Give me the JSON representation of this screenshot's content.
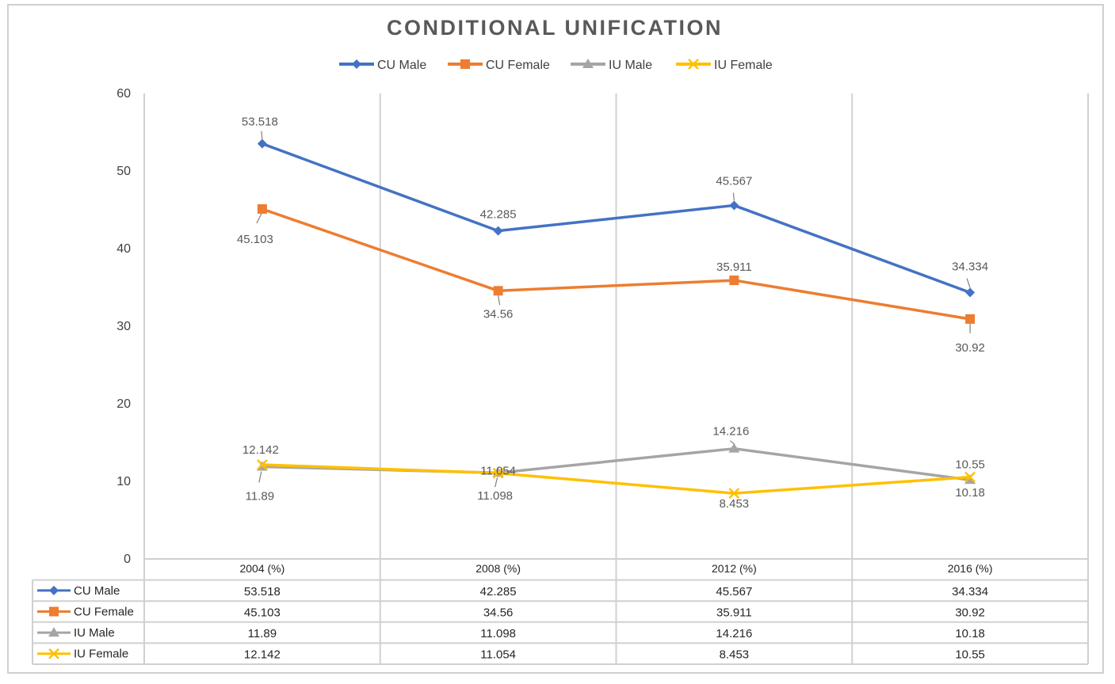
{
  "chart_data": {
    "type": "line",
    "title": "CONDITIONAL UNIFICATION",
    "categories": [
      "2004 (%)",
      "2008 (%)",
      "2012 (%)",
      "2016 (%)"
    ],
    "y_ticks": [
      "0",
      "10",
      "20",
      "30",
      "40",
      "50",
      "60"
    ],
    "ylim": [
      0,
      60
    ],
    "grid": "vertical",
    "legend_position": "top",
    "data_table": true,
    "series": [
      {
        "name": "CU Male",
        "values": [
          53.518,
          42.285,
          45.567,
          34.334
        ],
        "value_labels": [
          "53.518",
          "42.285",
          "45.567",
          "34.334"
        ],
        "color": "#4472C4",
        "marker": "diamond"
      },
      {
        "name": "CU Female",
        "values": [
          45.103,
          34.56,
          35.911,
          30.92
        ],
        "value_labels": [
          "45.103",
          "34.56",
          "35.911",
          "30.92"
        ],
        "color": "#ED7D31",
        "marker": "square"
      },
      {
        "name": "IU Male",
        "values": [
          11.89,
          11.098,
          14.216,
          10.18
        ],
        "value_labels": [
          "11.89",
          "11.098",
          "14.216",
          "10.18"
        ],
        "color": "#A5A5A5",
        "marker": "triangle"
      },
      {
        "name": "IU Female",
        "values": [
          12.142,
          11.054,
          8.453,
          10.55
        ],
        "value_labels": [
          "12.142",
          "11.054",
          "8.453",
          "10.55"
        ],
        "color": "#FFC000",
        "marker": "x"
      }
    ]
  }
}
